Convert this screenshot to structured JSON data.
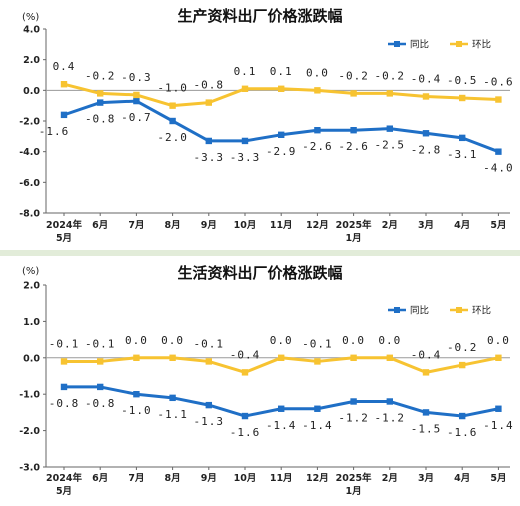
{
  "chart_data": [
    {
      "type": "line",
      "title": "生产资料出厂价格涨跌幅",
      "unit": "(%)",
      "categories": [
        [
          "2024年",
          "5月"
        ],
        [
          "6月"
        ],
        [
          "7月"
        ],
        [
          "8月"
        ],
        [
          "9月"
        ],
        [
          "10月"
        ],
        [
          "11月"
        ],
        [
          "12月"
        ],
        [
          "2025年",
          "1月"
        ],
        [
          "2月"
        ],
        [
          "3月"
        ],
        [
          "4月"
        ],
        [
          "5月"
        ]
      ],
      "yticks": [
        "4.0",
        "2.0",
        "0.0",
        "-2.0",
        "-4.0",
        "-6.0",
        "-8.0"
      ],
      "ylim": [
        -8,
        4
      ],
      "series": [
        {
          "name": "同比",
          "color": "#1f6fc6",
          "values": [
            -1.6,
            -0.8,
            -0.7,
            -2.0,
            -3.3,
            -3.3,
            -2.9,
            -2.6,
            -2.6,
            -2.5,
            -2.8,
            -3.1,
            -4.0
          ],
          "labels": [
            "-1.6",
            "-0.8",
            "-0.7",
            "-2.0",
            "-3.3",
            "-3.3",
            "-2.9",
            "-2.6",
            "-2.6",
            "-2.5",
            "-2.8",
            "-3.1",
            "-4.0"
          ]
        },
        {
          "name": "环比",
          "color": "#f7c331",
          "values": [
            0.4,
            -0.2,
            -0.3,
            -1.0,
            -0.8,
            0.1,
            0.1,
            0.0,
            -0.2,
            -0.2,
            -0.4,
            -0.5,
            -0.6
          ],
          "labels": [
            "0.4",
            "-0.2",
            "-0.3",
            "-1.0",
            "-0.8",
            "0.1",
            "0.1",
            "0.0",
            "-0.2",
            "-0.2",
            "-0.4",
            "-0.5",
            "-0.6"
          ]
        }
      ],
      "legend": "top-right",
      "grid": false
    },
    {
      "type": "line",
      "title": "生活资料出厂价格涨跌幅",
      "unit": "(%)",
      "categories": [
        [
          "2024年",
          "5月"
        ],
        [
          "6月"
        ],
        [
          "7月"
        ],
        [
          "8月"
        ],
        [
          "9月"
        ],
        [
          "10月"
        ],
        [
          "11月"
        ],
        [
          "12月"
        ],
        [
          "2025年",
          "1月"
        ],
        [
          "2月"
        ],
        [
          "3月"
        ],
        [
          "4月"
        ],
        [
          "5月"
        ]
      ],
      "yticks": [
        "2.0",
        "1.0",
        "0.0",
        "-1.0",
        "-2.0",
        "-3.0"
      ],
      "ylim": [
        -3,
        2
      ],
      "series": [
        {
          "name": "同比",
          "color": "#1f6fc6",
          "values": [
            -0.8,
            -0.8,
            -1.0,
            -1.1,
            -1.3,
            -1.6,
            -1.4,
            -1.4,
            -1.2,
            -1.2,
            -1.5,
            -1.6,
            -1.4
          ],
          "labels": [
            "-0.8",
            "-0.8",
            "-1.0",
            "-1.1",
            "-1.3",
            "-1.6",
            "-1.4",
            "-1.4",
            "-1.2",
            "-1.2",
            "-1.5",
            "-1.6",
            "-1.4"
          ]
        },
        {
          "name": "环比",
          "color": "#f7c331",
          "values": [
            -0.1,
            -0.1,
            0.0,
            0.0,
            -0.1,
            -0.4,
            0.0,
            -0.1,
            0.0,
            0.0,
            -0.4,
            -0.2,
            0.0
          ],
          "labels": [
            "-0.1",
            "-0.1",
            "0.0",
            "0.0",
            "-0.1",
            "-0.4",
            "0.0",
            "-0.1",
            "0.0",
            "0.0",
            "-0.4",
            "-0.2",
            "0.0"
          ]
        }
      ],
      "legend": "top-right",
      "grid": false
    }
  ]
}
